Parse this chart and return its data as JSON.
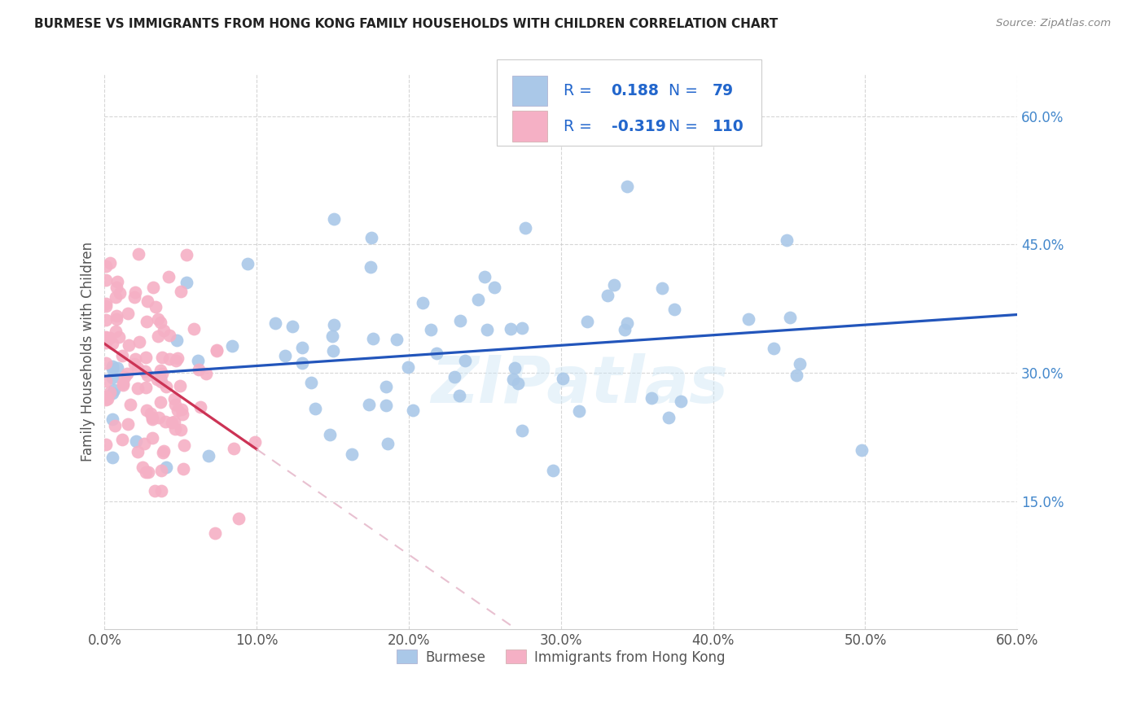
{
  "title": "BURMESE VS IMMIGRANTS FROM HONG KONG FAMILY HOUSEHOLDS WITH CHILDREN CORRELATION CHART",
  "source": "Source: ZipAtlas.com",
  "ylabel": "Family Households with Children",
  "xlim": [
    0.0,
    0.6
  ],
  "ylim": [
    0.0,
    0.65
  ],
  "xticks": [
    0.0,
    0.1,
    0.2,
    0.3,
    0.4,
    0.5,
    0.6
  ],
  "yticks": [
    0.15,
    0.3,
    0.45,
    0.6
  ],
  "blue_R": 0.188,
  "blue_N": 79,
  "pink_R": -0.319,
  "pink_N": 110,
  "blue_color": "#aac8e8",
  "blue_line_color": "#2255bb",
  "pink_color": "#f5b0c5",
  "pink_line_color": "#cc3355",
  "pink_dash_color": "#e8c0d0",
  "legend_text_color": "#334488",
  "legend_value_color": "#2266cc",
  "watermark": "ZIPatlas",
  "background_color": "#ffffff",
  "grid_color": "#cccccc",
  "right_tick_color": "#4488cc",
  "title_color": "#222222",
  "source_color": "#888888",
  "ylabel_color": "#555555",
  "xlabel_color": "#555555"
}
